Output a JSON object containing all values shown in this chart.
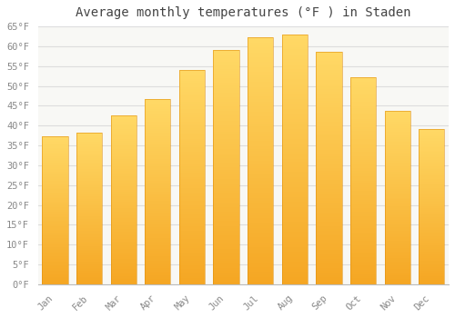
{
  "title": "Average monthly temperatures (°F ) in Staden",
  "months": [
    "Jan",
    "Feb",
    "Mar",
    "Apr",
    "May",
    "Jun",
    "Jul",
    "Aug",
    "Sep",
    "Oct",
    "Nov",
    "Dec"
  ],
  "values": [
    37.4,
    38.3,
    42.6,
    46.6,
    54.0,
    59.0,
    62.2,
    63.0,
    58.6,
    52.2,
    43.7,
    39.2
  ],
  "bar_color_bottom": "#F5A623",
  "bar_color_top": "#FFD966",
  "background_color": "#FFFFFF",
  "plot_bg_color": "#F8F8F5",
  "grid_color": "#DDDDDD",
  "ylim": [
    0,
    65
  ],
  "yticks": [
    0,
    5,
    10,
    15,
    20,
    25,
    30,
    35,
    40,
    45,
    50,
    55,
    60,
    65
  ],
  "title_fontsize": 10,
  "tick_fontsize": 7.5,
  "bar_width": 0.75
}
